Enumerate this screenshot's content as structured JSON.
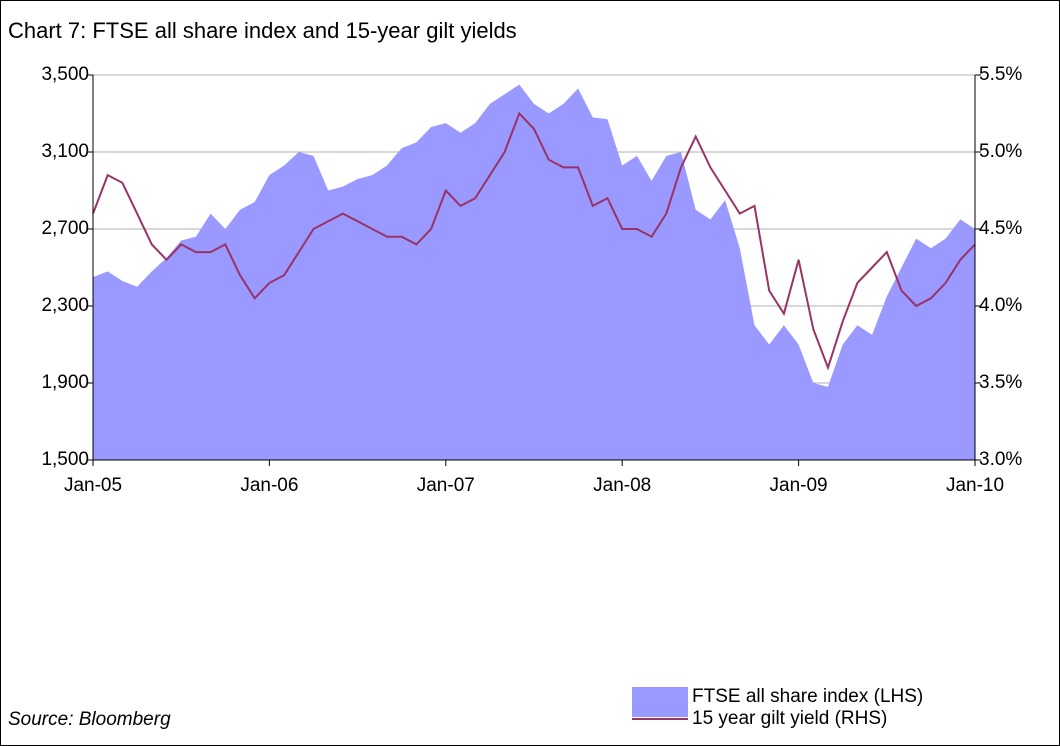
{
  "chart_data": {
    "type": "area-line",
    "title": "Chart 7: FTSE all share index and 15-year gilt yields",
    "source": "Source: Bloomberg",
    "x": [
      "2005-01",
      "2005-02",
      "2005-03",
      "2005-04",
      "2005-05",
      "2005-06",
      "2005-07",
      "2005-08",
      "2005-09",
      "2005-10",
      "2005-11",
      "2005-12",
      "2006-01",
      "2006-02",
      "2006-03",
      "2006-04",
      "2006-05",
      "2006-06",
      "2006-07",
      "2006-08",
      "2006-09",
      "2006-10",
      "2006-11",
      "2006-12",
      "2007-01",
      "2007-02",
      "2007-03",
      "2007-04",
      "2007-05",
      "2007-06",
      "2007-07",
      "2007-08",
      "2007-09",
      "2007-10",
      "2007-11",
      "2007-12",
      "2008-01",
      "2008-02",
      "2008-03",
      "2008-04",
      "2008-05",
      "2008-06",
      "2008-07",
      "2008-08",
      "2008-09",
      "2008-10",
      "2008-11",
      "2008-12",
      "2009-01",
      "2009-02",
      "2009-03",
      "2009-04",
      "2009-05",
      "2009-06",
      "2009-07",
      "2009-08",
      "2009-09",
      "2009-10",
      "2009-11",
      "2009-12",
      "2010-01"
    ],
    "series": [
      {
        "name": "FTSE all share index (LHS)",
        "color": "#9999ff",
        "axis": "y",
        "values": [
          2450,
          2480,
          2430,
          2400,
          2480,
          2550,
          2640,
          2660,
          2780,
          2700,
          2800,
          2840,
          2980,
          3030,
          3100,
          3080,
          2900,
          2920,
          2960,
          2980,
          3030,
          3120,
          3150,
          3230,
          3250,
          3200,
          3250,
          3350,
          3400,
          3450,
          3350,
          3300,
          3350,
          3430,
          3280,
          3270,
          3030,
          3080,
          2950,
          3080,
          3100,
          2800,
          2750,
          2850,
          2600,
          2200,
          2100,
          2200,
          2100,
          1900,
          1880,
          2100,
          2200,
          2150,
          2350,
          2500,
          2650,
          2600,
          2650,
          2750,
          2700
        ]
      },
      {
        "name": "15 year gilt yield (RHS)",
        "color": "#993366",
        "axis": "y2",
        "values": [
          4.6,
          4.85,
          4.8,
          4.6,
          4.4,
          4.3,
          4.4,
          4.35,
          4.35,
          4.4,
          4.2,
          4.05,
          4.15,
          4.2,
          4.35,
          4.5,
          4.55,
          4.6,
          4.55,
          4.5,
          4.45,
          4.45,
          4.4,
          4.5,
          4.75,
          4.65,
          4.7,
          4.85,
          5.0,
          5.25,
          5.15,
          4.95,
          4.9,
          4.9,
          4.65,
          4.7,
          4.5,
          4.5,
          4.45,
          4.6,
          4.9,
          5.1,
          4.9,
          4.75,
          4.6,
          4.65,
          4.1,
          3.95,
          4.3,
          3.85,
          3.6,
          3.9,
          4.15,
          4.25,
          4.35,
          4.1,
          4.0,
          4.05,
          4.15,
          4.3,
          4.4
        ]
      }
    ],
    "xlim": [
      "2005-01",
      "2010-01"
    ],
    "xticks": [
      {
        "value": "2005-01",
        "label": "Jan-05"
      },
      {
        "value": "2006-01",
        "label": "Jan-06"
      },
      {
        "value": "2007-01",
        "label": "Jan-07"
      },
      {
        "value": "2008-01",
        "label": "Jan-08"
      },
      {
        "value": "2009-01",
        "label": "Jan-09"
      },
      {
        "value": "2010-01",
        "label": "Jan-10"
      }
    ],
    "ylim": [
      1500,
      3500
    ],
    "yticks": [
      {
        "value": 1500,
        "label": "1,500"
      },
      {
        "value": 1900,
        "label": "1,900"
      },
      {
        "value": 2300,
        "label": "2,300"
      },
      {
        "value": 2700,
        "label": "2,700"
      },
      {
        "value": 3100,
        "label": "3,100"
      },
      {
        "value": 3500,
        "label": "3,500"
      }
    ],
    "y2lim": [
      3.0,
      5.5
    ],
    "y2ticks": [
      {
        "value": 3.0,
        "label": "3.0%"
      },
      {
        "value": 3.5,
        "label": "3.5%"
      },
      {
        "value": 4.0,
        "label": "4.0%"
      },
      {
        "value": 4.5,
        "label": "4.5%"
      },
      {
        "value": 5.0,
        "label": "5.0%"
      },
      {
        "value": 5.5,
        "label": "5.5%"
      }
    ],
    "grid": true
  }
}
